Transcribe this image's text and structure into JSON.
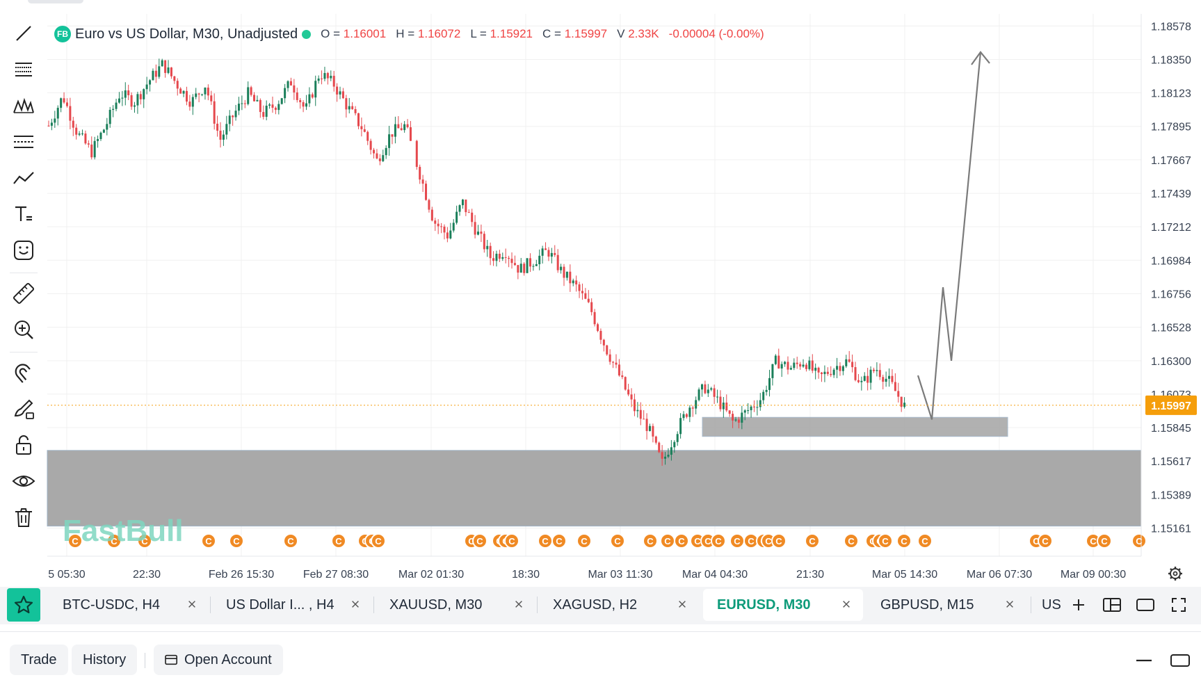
{
  "legend": {
    "badge": "FB",
    "title": "Euro vs US Dollar, M30, Unadjusted",
    "open_label": "O =",
    "open": "1.16001",
    "high_label": "H =",
    "high": "1.16072",
    "low_label": "L =",
    "low": "1.15921",
    "close_label": "C =",
    "close": "1.15997",
    "volume_label": "V",
    "volume": "2.33K",
    "change": "-0.00004 (-0.00%)"
  },
  "chart_data": {
    "type": "candlestick",
    "symbol": "EURUSD",
    "timeframe": "M30",
    "y_ticks": [
      "1.18578",
      "1.18350",
      "1.18123",
      "1.17895",
      "1.17667",
      "1.17439",
      "1.17212",
      "1.16984",
      "1.16756",
      "1.16528",
      "1.16300",
      "1.16073",
      "1.15845",
      "1.15617",
      "1.15389",
      "1.15161"
    ],
    "x_ticks": [
      "5 05:30",
      "22:30",
      "Feb 26 15:30",
      "Feb 27 08:30",
      "Mar 02 01:30",
      "18:30",
      "Mar 03 11:30",
      "Mar 04 04:30",
      "21:30",
      "Mar 05 14:30",
      "Mar 06 07:30",
      "Mar 09 00:30"
    ],
    "ylim": [
      1.1497,
      1.1866
    ],
    "last_price": "1.15997",
    "last_price_value": 1.15997,
    "price_path": [
      1.179,
      1.181,
      1.1785,
      1.1772,
      1.179,
      1.1812,
      1.1806,
      1.182,
      1.1832,
      1.1818,
      1.1806,
      1.1818,
      1.178,
      1.1798,
      1.1812,
      1.1798,
      1.1805,
      1.182,
      1.18,
      1.1826,
      1.1818,
      1.1802,
      1.1788,
      1.1766,
      1.1785,
      1.179,
      1.1758,
      1.1725,
      1.1715,
      1.1738,
      1.1718,
      1.17,
      1.1705,
      1.1692,
      1.1698,
      1.1705,
      1.169,
      1.168,
      1.1665,
      1.164,
      1.162,
      1.1598,
      1.1585,
      1.156,
      1.1582,
      1.16,
      1.1612,
      1.1602,
      1.1588,
      1.1596,
      1.1605,
      1.163,
      1.1625,
      1.163,
      1.1618,
      1.1625,
      1.163,
      1.1614,
      1.1625,
      1.1615,
      1.1599
    ],
    "zones": [
      {
        "y_top": 1.1569,
        "y_bottom": 1.15175,
        "x_start": 0,
        "x_end": 1
      },
      {
        "y_top": 1.15915,
        "y_bottom": 1.15785,
        "x_start_tick": 7,
        "x_end_tick": 10
      }
    ],
    "projection": [
      [
        1.162,
        1.159
      ],
      [
        1.168,
        1.163
      ],
      [
        1.184
      ]
    ],
    "event_markers": [
      "C"
    ]
  },
  "toolbar": {
    "tools": [
      "line-tool-icon",
      "fib-retracement-icon",
      "pattern-icon",
      "channel-icon",
      "polyline-icon",
      "text-tool-icon",
      "emoji-icon",
      "ruler-icon",
      "zoom-in-icon",
      "magnet-icon",
      "brush-lock-icon",
      "lock-icon",
      "eye-icon",
      "trash-icon"
    ]
  },
  "watermark": "FastBull",
  "tabs": [
    {
      "label": "BTC-USDC, H4"
    },
    {
      "label": "US Dollar I... , H4"
    },
    {
      "label": "XAUUSD, M30"
    },
    {
      "label": "XAGUSD, H2"
    },
    {
      "label": "EURUSD, M30",
      "active": true
    },
    {
      "label": "GBPUSD, M15"
    }
  ],
  "tab_more": "US",
  "bottom": {
    "trade": "Trade",
    "history": "History",
    "open_account": "Open Account"
  },
  "colors": {
    "up": "#1a7f5a",
    "down": "#e5484d",
    "accent": "#13c29a",
    "price_tag": "#f59e0b",
    "zone": "#a9a9a9",
    "marker": "#f08a24"
  }
}
